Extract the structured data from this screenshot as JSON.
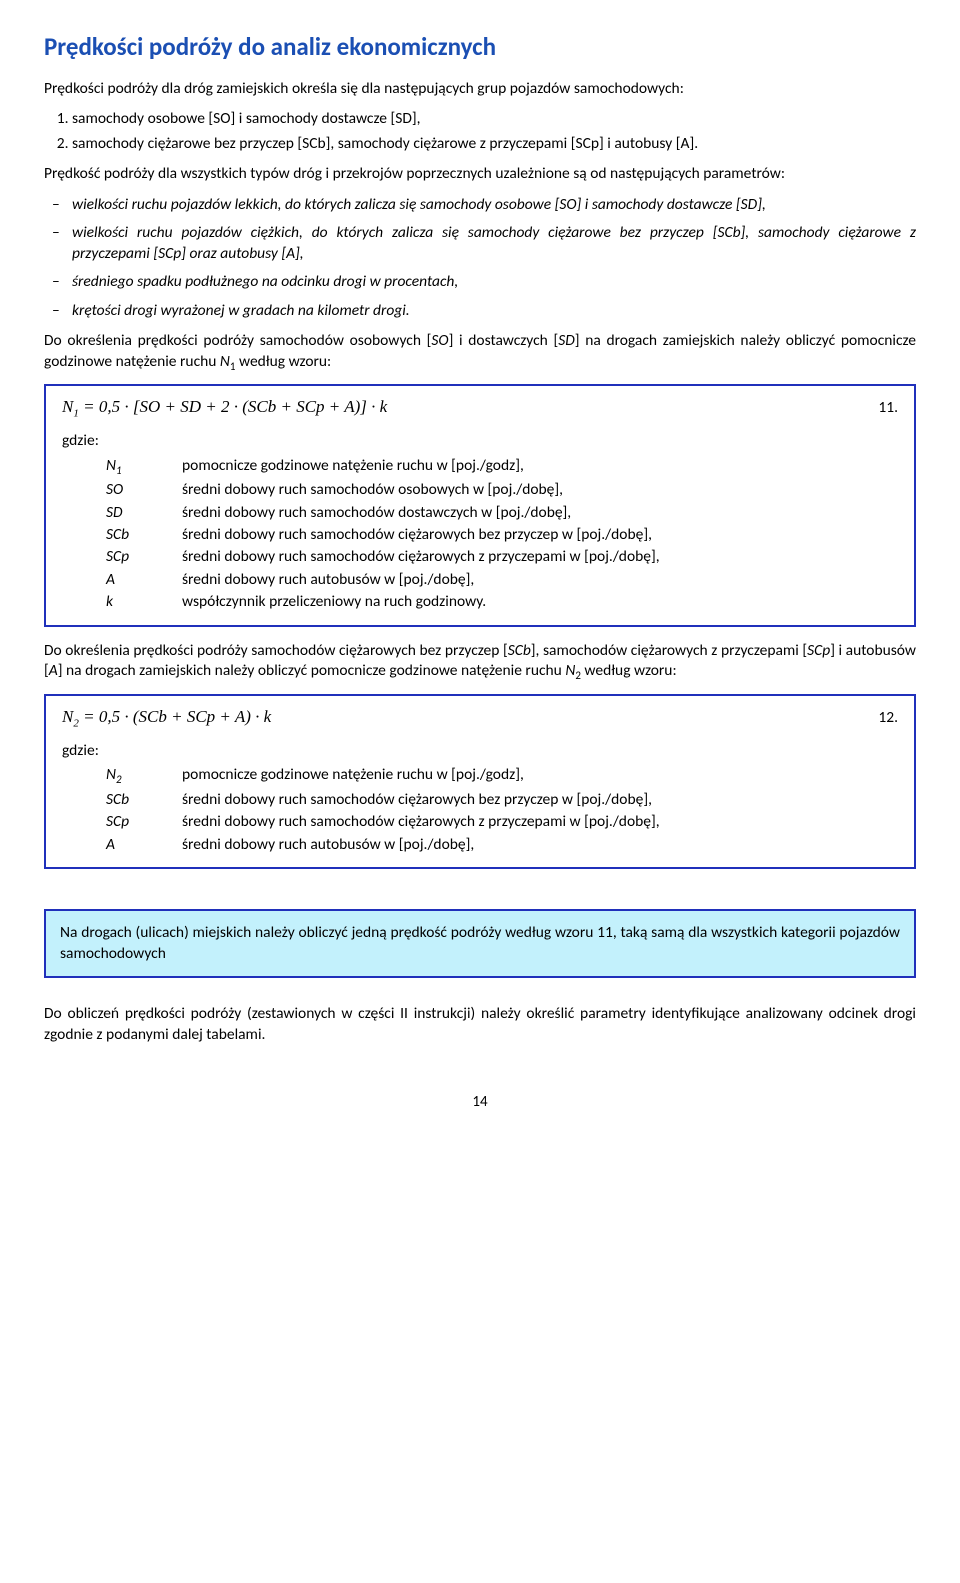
{
  "title": "Prędkości podróży do analiz ekonomicznych",
  "intro": "Prędkości podróży dla dróg zamiejskich określa się dla następujących grup pojazdów samochodowych:",
  "numlist": [
    "samochody osobowe [SO] i samochody dostawcze [SD],",
    "samochody ciężarowe bez przyczep [SCb], samochody ciężarowe z przyczepami [SCp] i autobusy [A]."
  ],
  "para2": "Prędkość podróży dla wszystkich typów dróg i przekrojów poprzecznych uzależnione są od następujących parametrów:",
  "bullets": [
    "wielkości ruchu pojazdów lekkich, do których zalicza się samochody osobowe [SO] i samochody dostawcze [SD],",
    "wielkości ruchu pojazdów ciężkich, do których zalicza się samochody ciężarowe bez przyczep [SCb], samochody ciężarowe z przyczepami [SCp] oraz autobusy [A],",
    "średniego spadku podłużnego na odcinku drogi w procentach,",
    "krętości drogi wyrażonej w gradach na kilometr drogi."
  ],
  "para3": "Do określenia prędkości podróży samochodów osobowych [SO] i dostawczych [SD] na drogach zamiejskich należy obliczyć pomocnicze godzinowe natężenie ruchu N₁ według wzoru:",
  "box1": {
    "formula": "N₁ = 0,5 · [SO + SD + 2 · (SCb + SCp + A)] · k",
    "eqnum": "11.",
    "gdzie": "gdzie:",
    "defs": [
      {
        "s": "N₁",
        "d": "pomocnicze godzinowe natężenie ruchu w [poj./godz],"
      },
      {
        "s": "SO",
        "d": "średni dobowy ruch samochodów osobowych w [poj./dobę],"
      },
      {
        "s": "SD",
        "d": "średni dobowy ruch samochodów dostawczych w [poj./dobę],"
      },
      {
        "s": "SCb",
        "d": "średni dobowy ruch samochodów ciężarowych bez przyczep w [poj./dobę],"
      },
      {
        "s": "SCp",
        "d": "średni dobowy ruch samochodów ciężarowych z przyczepami w [poj./dobę],"
      },
      {
        "s": "A",
        "d": "średni dobowy ruch autobusów w [poj./dobę],"
      },
      {
        "s": "k",
        "d": "współczynnik przeliczeniowy na ruch godzinowy."
      }
    ]
  },
  "para4": "Do określenia prędkości podróży samochodów ciężarowych bez przyczep [SCb], samochodów ciężarowych z przyczepami [SCp] i autobusów [A] na drogach zamiejskich należy obliczyć pomocnicze godzinowe natężenie ruchu N₂ według wzoru:",
  "box2": {
    "formula": "N₂ = 0,5 · (SCb + SCp + A) · k",
    "eqnum": "12.",
    "gdzie": "gdzie:",
    "defs": [
      {
        "s": "N₂",
        "d": "pomocnicze godzinowe natężenie ruchu w [poj./godz],"
      },
      {
        "s": "SCb",
        "d": "średni dobowy ruch samochodów ciężarowych bez przyczep w [poj./dobę],"
      },
      {
        "s": "SCp",
        "d": "średni dobowy ruch samochodów ciężarowych z przyczepami w [poj./dobę],"
      },
      {
        "s": "A",
        "d": "średni dobowy ruch autobusów w [poj./dobę],"
      }
    ]
  },
  "notice": "Na drogach (ulicach) miejskich należy obliczyć jedną prędkość podróży według wzoru 11, taką samą dla wszystkich kategorii pojazdów samochodowych",
  "para5": "Do obliczeń prędkości podróży (zestawionych w części II instrukcji) należy określić parametry identyfikujące analizowany odcinek drogi zgodnie z podanymi dalej tabelami.",
  "pagenum": "14"
}
